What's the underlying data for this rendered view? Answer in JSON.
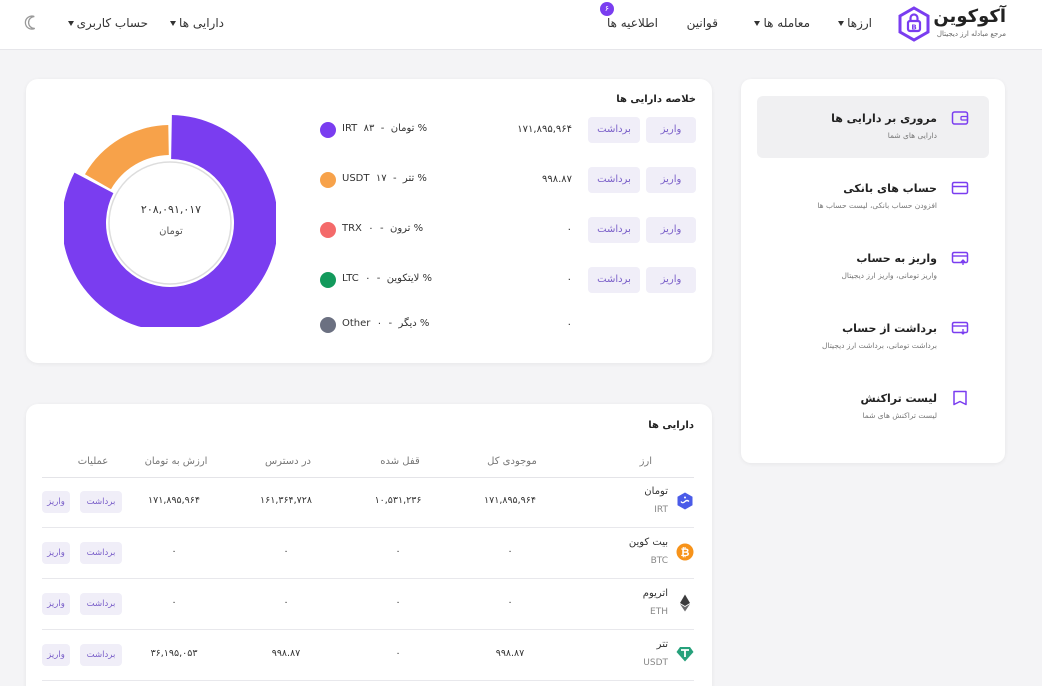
{
  "header": {
    "logo_name": "آکوکوین",
    "logo_tagline": "مرجع مبادله ارز دیجیتال",
    "nav": {
      "currencies": "ارزها",
      "trade": "معامله ها",
      "rules": "قوانین",
      "announcements": "اطلاعیه ها",
      "announcements_badge": "۶",
      "assets": "دارایی ها",
      "account": "حساب کاربری"
    },
    "icons": {
      "logo": "hexagon-lock-icon",
      "theme": "moon-icon"
    }
  },
  "sidebar": {
    "items": [
      {
        "title": "مروری بر دارایی ها",
        "subtitle": "دارایی های شما",
        "icon": "wallet-icon",
        "active": true
      },
      {
        "title": "حساب های بانکی",
        "subtitle": "افزودن حساب بانکی، لیست حساب ها",
        "icon": "card-icon",
        "active": false
      },
      {
        "title": "واریز به حساب",
        "subtitle": "واریز تومانی، واریز ارز دیجیتال",
        "icon": "deposit-icon",
        "active": false
      },
      {
        "title": "برداشت از حساب",
        "subtitle": "برداشت تومانی، برداشت ارز دیجیتال",
        "icon": "withdraw-icon",
        "active": false
      },
      {
        "title": "لیست تراکنش",
        "subtitle": "لیست تراکنش های شما",
        "icon": "list-icon",
        "active": false
      }
    ]
  },
  "summary": {
    "title": "خلاصه دارایی ها",
    "total_value": "۲۰۸,۰۹۱,۰۱۷",
    "total_unit": "تومان",
    "deposit_label": "واریز",
    "withdraw_label": "برداشت",
    "rows": [
      {
        "code": "IRT",
        "name": "تومان",
        "percent": "۸۳ %",
        "percent_value": 83,
        "amount": "۱۷۱,۸۹۵,۹۶۴",
        "color": "#7a3df0",
        "has_buttons": true
      },
      {
        "code": "USDT",
        "name": "تتر",
        "percent": "۱۷ %",
        "percent_value": 17,
        "amount": "۹۹۸.۸۷",
        "color": "#f7a24a",
        "has_buttons": true
      },
      {
        "code": "TRX",
        "name": "ترون",
        "percent": "۰ %",
        "percent_value": 0,
        "amount": "۰",
        "color": "#f46a6a",
        "has_buttons": true
      },
      {
        "code": "LTC",
        "name": "لایتکوین",
        "percent": "۰ %",
        "percent_value": 0,
        "amount": "۰",
        "color": "#139a5c",
        "has_buttons": true
      },
      {
        "code": "Other",
        "name": "دیگر",
        "percent": "۰ %",
        "percent_value": 0,
        "amount": "۰",
        "color": "#6b7081",
        "has_buttons": false
      }
    ]
  },
  "assets": {
    "title": "دارایی ها",
    "columns": [
      "ارز",
      "موجودی کل",
      "قفل شده",
      "در دسترس",
      "ارزش به تومان",
      "عملیات"
    ],
    "deposit_label": "واریز",
    "withdraw_label": "برداشت",
    "rows": [
      {
        "name": "تومان",
        "code": "IRT",
        "icon": "toman-icon",
        "icon_color": "#4a5be8",
        "total": "۱۷۱,۸۹۵,۹۶۴",
        "locked": "۱۰,۵۳۱,۲۳۶",
        "available": "۱۶۱,۳۶۴,۷۲۸",
        "value": "۱۷۱,۸۹۵,۹۶۴"
      },
      {
        "name": "بیت کوین",
        "code": "BTC",
        "icon": "bitcoin-icon",
        "icon_color": "#f7931a",
        "total": "۰",
        "locked": "۰",
        "available": "۰",
        "value": "۰"
      },
      {
        "name": "اتریوم",
        "code": "ETH",
        "icon": "ethereum-icon",
        "icon_color": "#3c3c3d",
        "total": "۰",
        "locked": "۰",
        "available": "۰",
        "value": "۰"
      },
      {
        "name": "تتر",
        "code": "USDT",
        "icon": "tether-icon",
        "icon_color": "#26a17b",
        "total": "۹۹۸.۸۷",
        "locked": "۰",
        "available": "۹۹۸.۸۷",
        "value": "۳۶,۱۹۵,۰۵۳"
      }
    ]
  }
}
